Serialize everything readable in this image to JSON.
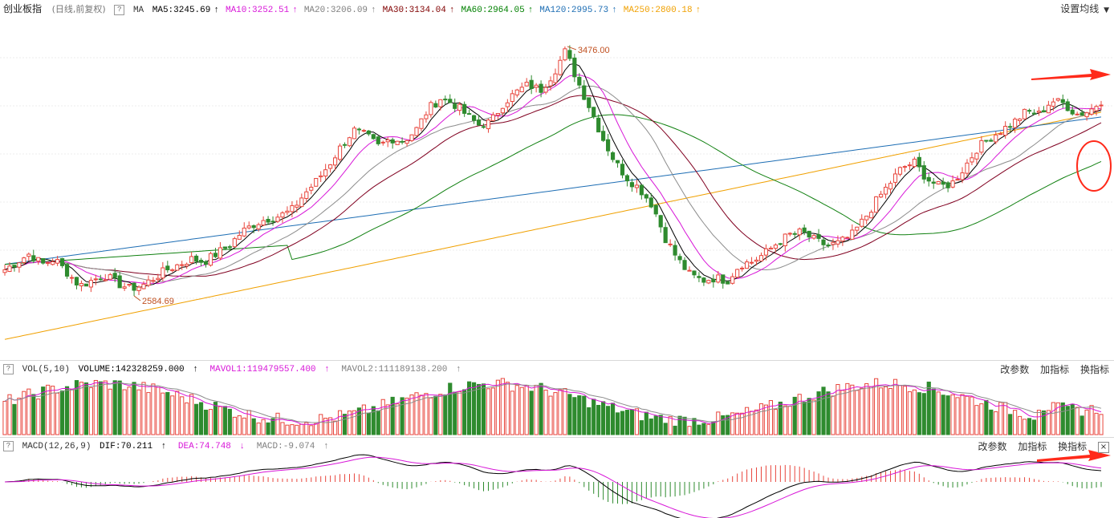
{
  "main": {
    "title": "创业板指",
    "subtitle": "(日线,前复权)",
    "help": "?",
    "ma_label": "MA",
    "ma": [
      {
        "label": "MA5:3245.69",
        "arrow": "↑",
        "color": "#000000"
      },
      {
        "label": "MA10:3252.51",
        "arrow": "↑",
        "color": "#d817d8"
      },
      {
        "label": "MA20:3206.09",
        "arrow": "↑",
        "color": "#7f7f7f"
      },
      {
        "label": "MA30:3134.04",
        "arrow": "↑",
        "color": "#800000"
      },
      {
        "label": "MA60:2964.05",
        "arrow": "↑",
        "color": "#008000"
      },
      {
        "label": "MA120:2995.73",
        "arrow": "↑",
        "color": "#1e6eb4"
      },
      {
        "label": "MA250:2800.18",
        "arrow": "↑",
        "color": "#f0a000"
      }
    ],
    "settings": "设置均线",
    "high_label": "3476.00",
    "low_label": "2584.69"
  },
  "vol": {
    "help": "?",
    "label": "VOL(5,10)",
    "volume": "VOLUME:142328259.000",
    "arrow1": "↑",
    "mavol1": "MAVOL1:119479557.400",
    "arrow2": "↑",
    "mavol2": "MAVOL2:111189138.200",
    "arrow3": "↑",
    "buttons": [
      "改参数",
      "加指标",
      "换指标"
    ]
  },
  "macd": {
    "help": "?",
    "label": "MACD(12,26,9)",
    "dif": "DIF:70.211",
    "arrow1": "↑",
    "dea": "DEA:74.748",
    "arrow2": "↓",
    "macd": "MACD:-9.074",
    "arrow3": "↑",
    "buttons": [
      "改参数",
      "加指标",
      "换指标"
    ],
    "close": "×"
  },
  "colors": {
    "up": "#e8453c",
    "down": "#2e8b2e",
    "ma5": "#000000",
    "ma10": "#d817d8",
    "ma20": "#8c8c8c",
    "ma30": "#800020",
    "ma60": "#108010",
    "ma120": "#1e6eb4",
    "ma250": "#f0a000",
    "annotation": "#ff2a1a"
  },
  "chart_data": {
    "type": "candlestick",
    "price_range": [
      2350,
      3600
    ],
    "high": 3476.0,
    "low": 2584.69,
    "close_path": [
      2660,
      2690,
      2720,
      2680,
      2700,
      2650,
      2600,
      2620,
      2640,
      2610,
      2590,
      2600,
      2630,
      2660,
      2680,
      2700,
      2690,
      2720,
      2750,
      2800,
      2830,
      2850,
      2860,
      2880,
      2940,
      2990,
      3050,
      3120,
      3180,
      3160,
      3120,
      3150,
      3140,
      3180,
      3260,
      3300,
      3280,
      3240,
      3200,
      3210,
      3280,
      3320,
      3350,
      3330,
      3390,
      3476,
      3360,
      3260,
      3150,
      3060,
      3000,
      2960,
      2900,
      2780,
      2700,
      2640,
      2620,
      2630,
      2620,
      2680,
      2690,
      2720,
      2760,
      2790,
      2800,
      2770,
      2750,
      2760,
      2790,
      2850,
      2920,
      2980,
      3040,
      3060,
      3000,
      2970,
      2980,
      3040,
      3110,
      3150,
      3180,
      3210,
      3250,
      3240,
      3290,
      3280,
      3240,
      3250,
      3290
    ],
    "volume_scale": "relative",
    "macd_range": [
      -120,
      120
    ]
  }
}
